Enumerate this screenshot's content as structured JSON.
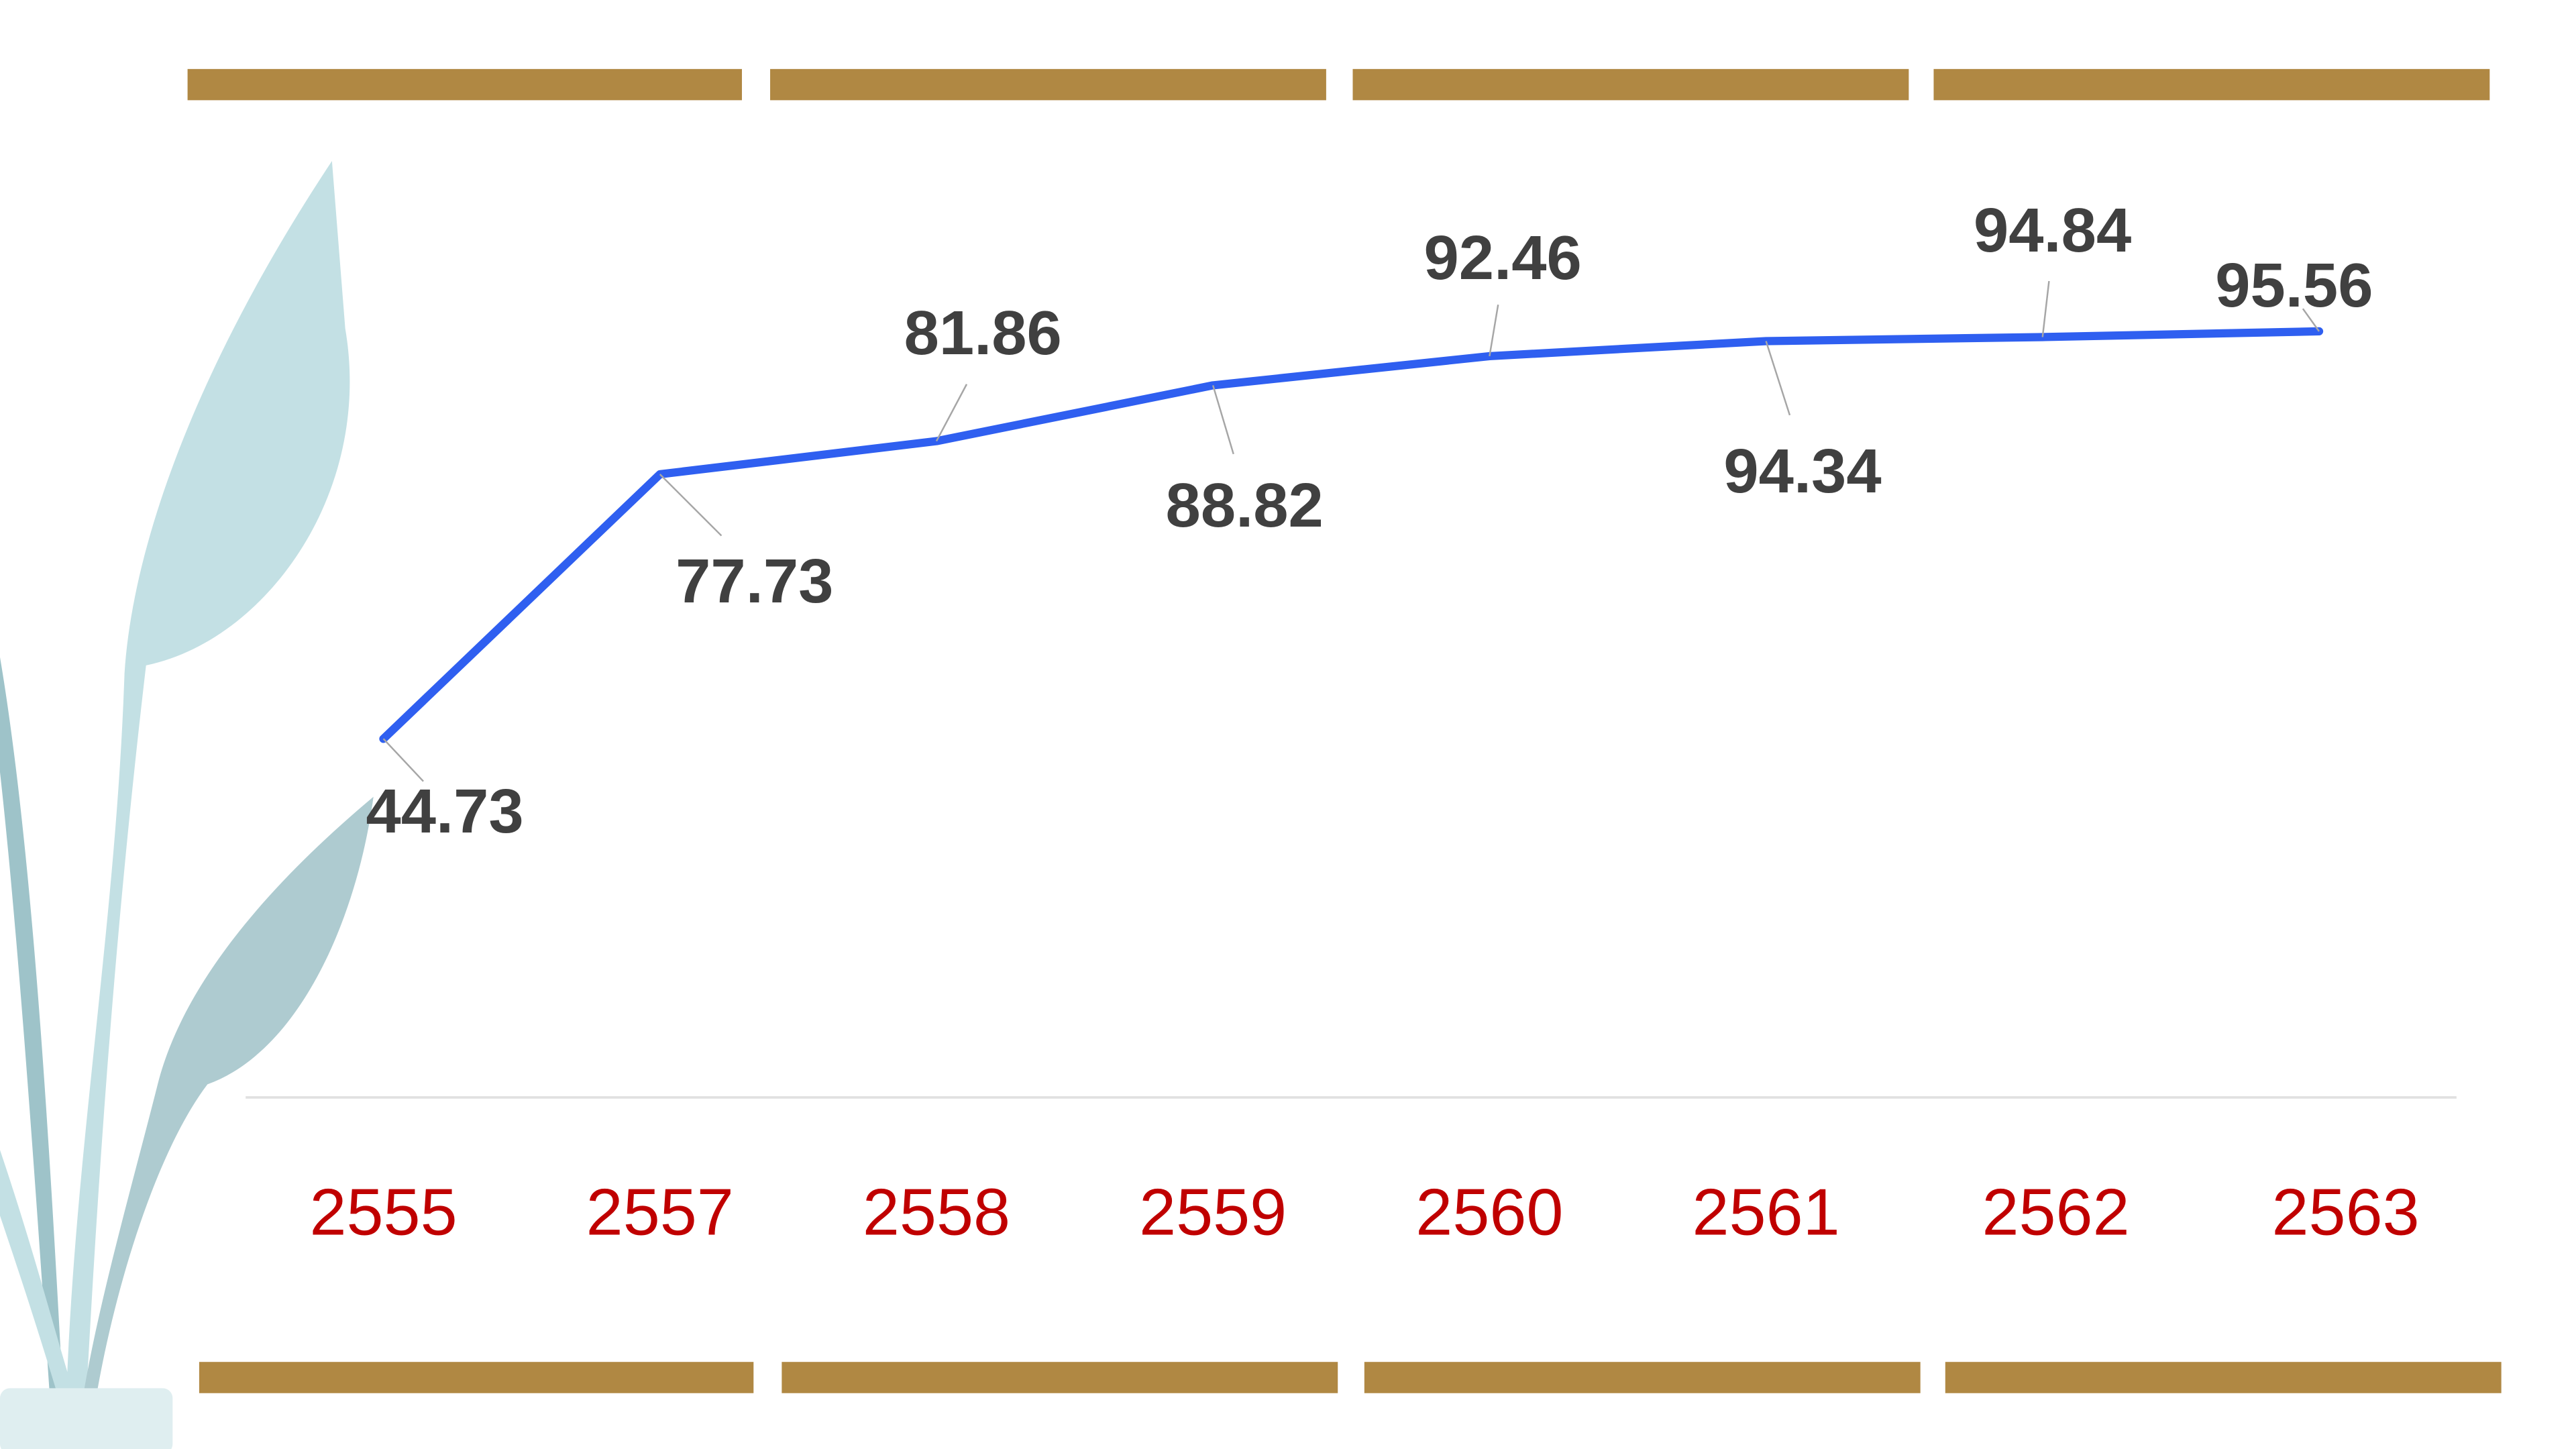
{
  "chart_data": {
    "type": "line",
    "categories": [
      "2555",
      "2557",
      "2558",
      "2559",
      "2560",
      "2561",
      "2562",
      "2563"
    ],
    "series": [
      {
        "color": "#2f5ff0",
        "values": [
          44.73,
          77.73,
          81.86,
          88.82,
          92.46,
          94.34,
          94.84,
          95.56
        ]
      }
    ],
    "ylim": [
      0,
      100
    ],
    "grid": false
  }
}
